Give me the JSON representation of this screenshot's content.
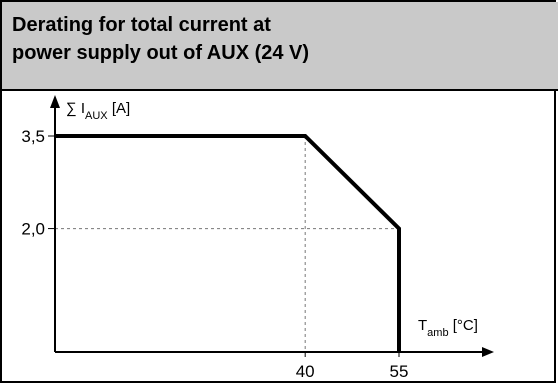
{
  "title_lines": [
    "Derating for total current at",
    "power supply out of AUX (24 V)"
  ],
  "chart_data": {
    "type": "line",
    "title": "Derating for total current at power supply out of AUX (24 V)",
    "ylabel": {
      "prefix": "∑ I",
      "sub": "AUX",
      "unit": " [A]"
    },
    "xlabel": {
      "prefix": "T",
      "sub": "amb",
      "unit": " [°C]"
    },
    "xlim": [
      0,
      65
    ],
    "ylim": [
      0,
      4.5
    ],
    "x_ticks": [
      {
        "value": 40,
        "label": "40"
      },
      {
        "value": 55,
        "label": "55"
      }
    ],
    "y_ticks": [
      {
        "value": 3.5,
        "label": "3,5"
      },
      {
        "value": 2.0,
        "label": "2,0"
      }
    ],
    "series": [
      {
        "points": [
          [
            0,
            3.5
          ],
          [
            40,
            3.5
          ],
          [
            55,
            2.0
          ],
          [
            55,
            0
          ]
        ]
      }
    ],
    "guides": [
      {
        "axis": "x",
        "value": 40
      },
      {
        "axis": "x",
        "value": 55
      },
      {
        "axis": "y",
        "value": 2.0
      }
    ],
    "grid": false
  }
}
